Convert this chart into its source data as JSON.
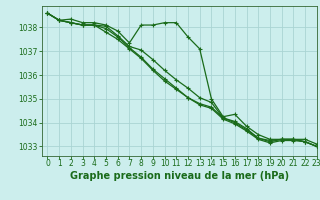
{
  "title": "Graphe pression niveau de la mer (hPa)",
  "background_color": "#cceeed",
  "grid_color": "#aad4d3",
  "line_color": "#1a6b1a",
  "marker_color": "#1a6b1a",
  "xlim": [
    -0.5,
    23
  ],
  "ylim": [
    1032.6,
    1038.9
  ],
  "yticks": [
    1033,
    1034,
    1035,
    1036,
    1037,
    1038
  ],
  "xticks": [
    0,
    1,
    2,
    3,
    4,
    5,
    6,
    7,
    8,
    9,
    10,
    11,
    12,
    13,
    14,
    15,
    16,
    17,
    18,
    19,
    20,
    21,
    22,
    23
  ],
  "series": [
    [
      1038.6,
      1038.3,
      1038.35,
      1038.2,
      1038.2,
      1038.1,
      1037.85,
      1037.35,
      1038.1,
      1038.1,
      1038.2,
      1038.2,
      1037.6,
      1037.1,
      1035.0,
      1034.25,
      1034.35,
      1033.85,
      1033.5,
      1033.3,
      1033.3,
      1033.3,
      1033.2,
      1033.0
    ],
    [
      1038.6,
      1038.3,
      1038.2,
      1038.1,
      1038.1,
      1038.05,
      1037.65,
      1037.2,
      1037.05,
      1036.65,
      1036.2,
      1035.8,
      1035.45,
      1035.05,
      1034.85,
      1034.2,
      1034.05,
      1033.75,
      1033.35,
      1033.25,
      1033.3,
      1033.3,
      1033.3,
      1033.1
    ],
    [
      1038.6,
      1038.3,
      1038.2,
      1038.1,
      1038.1,
      1037.95,
      1037.6,
      1037.15,
      1036.75,
      1036.25,
      1035.85,
      1035.45,
      1035.05,
      1034.8,
      1034.65,
      1034.2,
      1034.0,
      1033.7,
      1033.35,
      1033.2,
      1033.3,
      1033.3,
      1033.2,
      1033.0
    ],
    [
      1038.6,
      1038.3,
      1038.2,
      1038.1,
      1038.1,
      1037.8,
      1037.5,
      1037.1,
      1036.7,
      1036.2,
      1035.75,
      1035.4,
      1035.05,
      1034.75,
      1034.6,
      1034.15,
      1033.95,
      1033.65,
      1033.3,
      1033.15,
      1033.25,
      1033.25,
      1033.2,
      1033.0
    ]
  ],
  "linewidth": 0.9,
  "markersize": 2.5,
  "title_fontsize": 7,
  "tick_fontsize": 5.5,
  "tick_color": "#1a6b1a",
  "axis_color": "#1a6b1a",
  "spine_color": "#336633"
}
